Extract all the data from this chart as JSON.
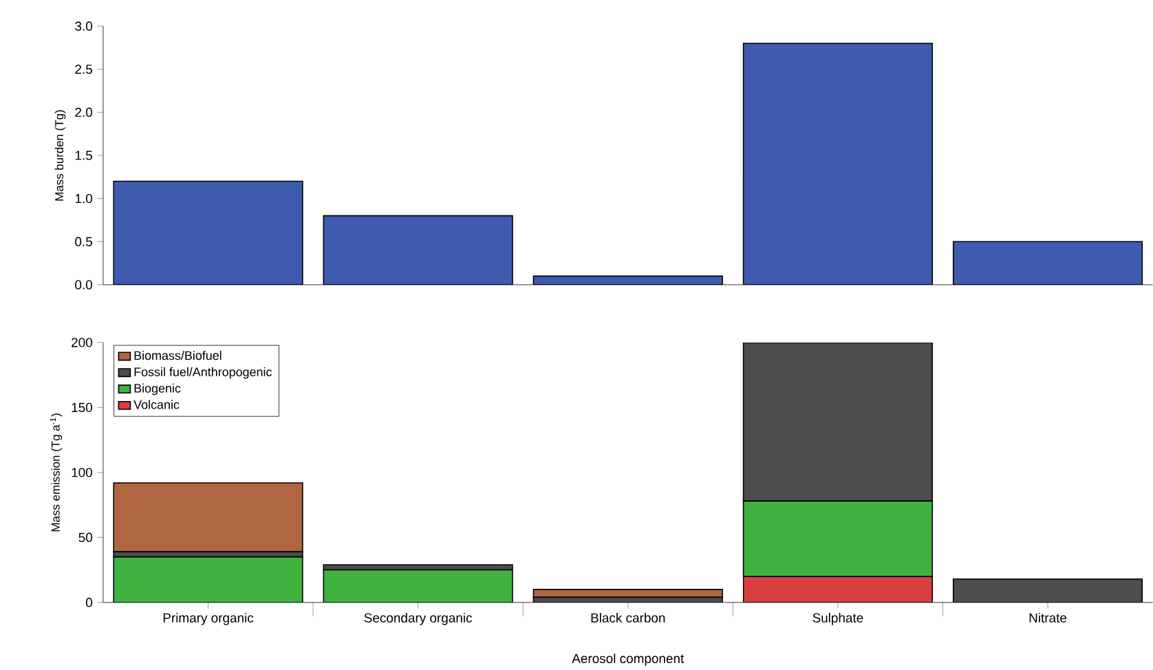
{
  "chart_data": [
    {
      "type": "bar",
      "categories": [
        null,
        null,
        null,
        null,
        null
      ],
      "values": [
        1.2,
        0.8,
        0.1,
        2.8,
        0.5
      ],
      "color": "#3f5bb0",
      "ylabel": "Mass burden (Tg)",
      "ylim": [
        0,
        3
      ],
      "yticks": [
        {
          "value": 0,
          "label": "0.0"
        },
        0.5,
        {
          "value": 1,
          "label": "1.0"
        },
        1.5,
        {
          "value": 2,
          "label": "2.0"
        },
        2.5,
        {
          "value": 3,
          "label": "3.0"
        }
      ],
      "tick_labels": "y",
      "grid": false,
      "legend": false
    },
    {
      "type": "bar",
      "stacked": true,
      "categories": [
        "Primary organic",
        "Secondary organic",
        "Black carbon",
        "Sulphate",
        "Nitrate"
      ],
      "xlabel": "Aerosol component",
      "ylabel": "Mass emission (Tg a$^{-1}$)",
      "ylim": [
        0,
        200
      ],
      "yticks": [
        0,
        50,
        100,
        150,
        200
      ],
      "grid": false,
      "legend": "top left",
      "series": [
        {
          "name": "Volcanic",
          "color": "#d84040",
          "values": [
            0,
            0,
            0,
            20,
            0
          ]
        },
        {
          "name": "Biogenic",
          "color": "#40b240",
          "values": [
            35,
            25,
            0,
            58,
            0
          ]
        },
        {
          "name": "Fossil fuel/Anthropogenic",
          "color": "#4d4d4d",
          "values": [
            4,
            4,
            4,
            122,
            18
          ]
        },
        {
          "name": "Biomass/Biofuel",
          "color": "#b06640",
          "values": [
            53,
            0,
            6,
            0,
            0
          ]
        }
      ]
    }
  ]
}
